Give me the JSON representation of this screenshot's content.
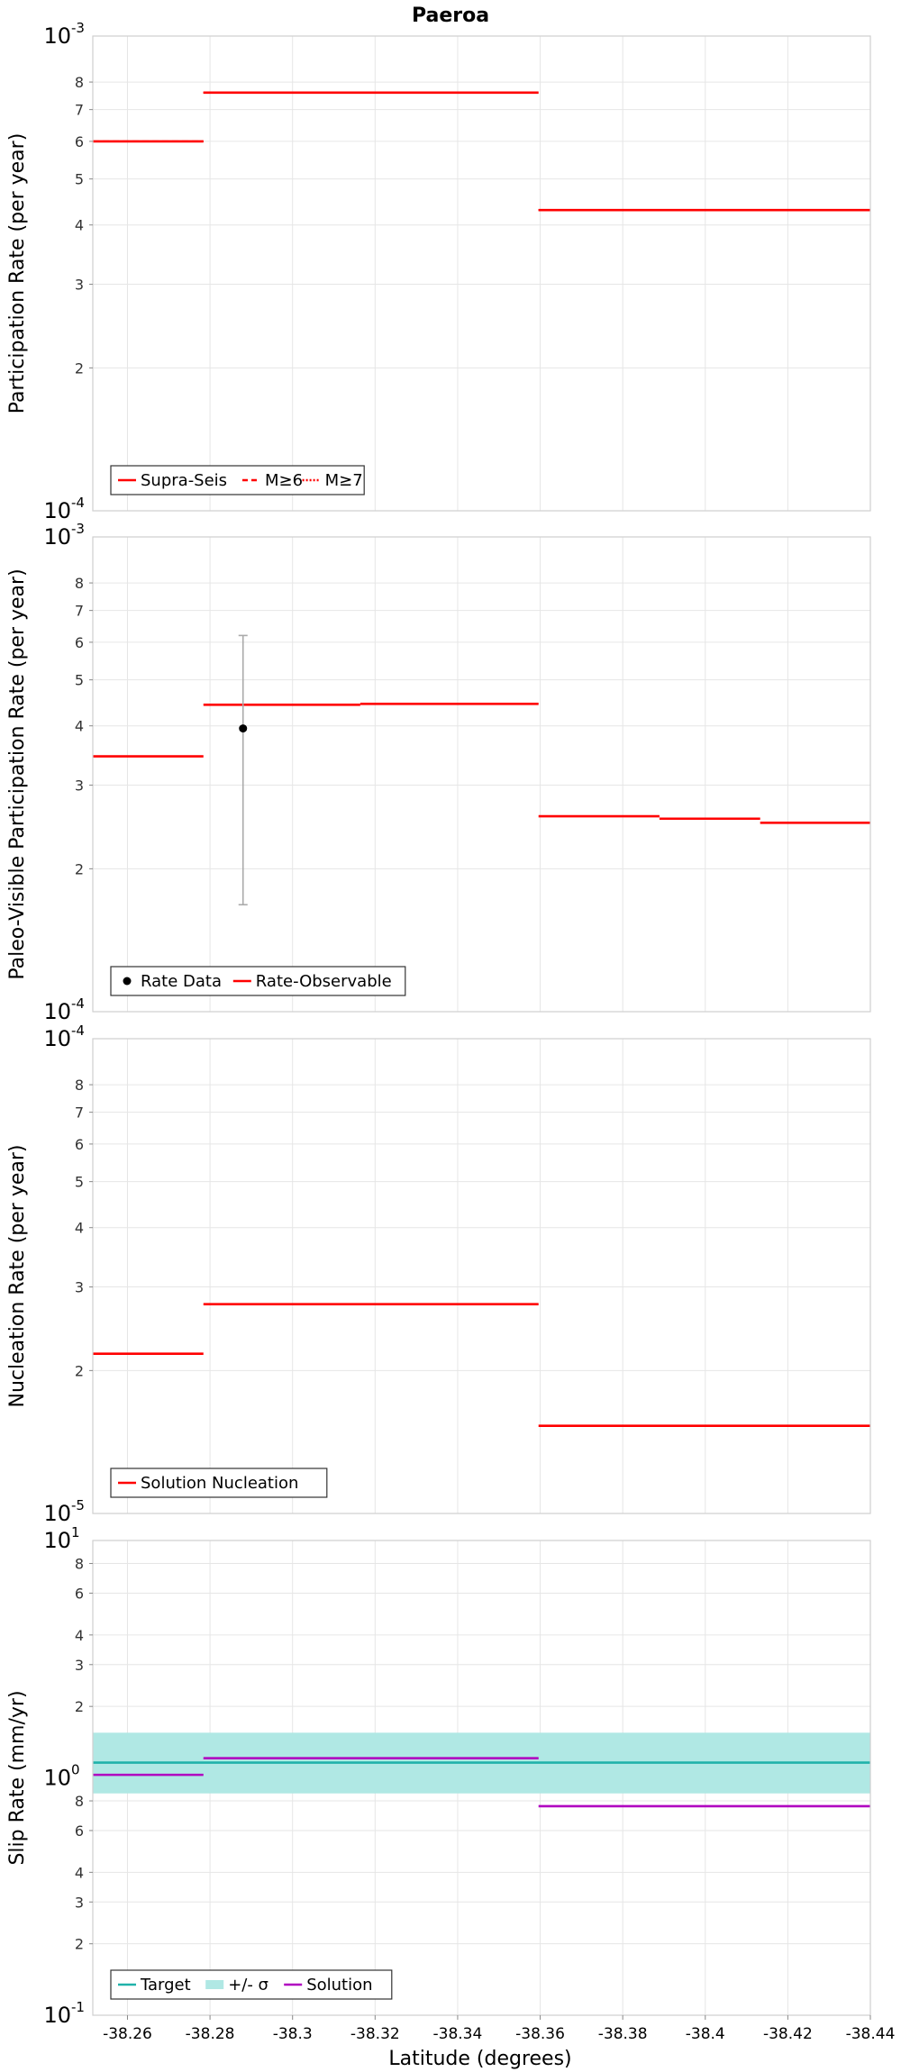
{
  "figure": {
    "title": "Paeroa",
    "xlabel": "Latitude (degrees)",
    "x_ticks": [
      -38.26,
      -38.28,
      -38.3,
      -38.32,
      -38.34,
      -38.36,
      -38.38,
      -38.4,
      -38.42,
      -38.44
    ],
    "x_tick_labels": [
      "-38.26",
      "-38.28",
      "-38.3",
      "-38.32",
      "-38.34",
      "-38.36",
      "-38.38",
      "-38.4",
      "-38.42",
      "-38.44"
    ],
    "xlim": [
      -38.2516,
      -38.44
    ]
  },
  "chart_data": [
    {
      "type": "line",
      "ylabel": "Participation Rate (per year)",
      "yscale": "log",
      "ylim": [
        0.0001,
        0.001
      ],
      "major_ticks": [
        {
          "value": 0.001,
          "base": "10",
          "exp": "-3"
        },
        {
          "value": 0.0001,
          "base": "10",
          "exp": "-4"
        }
      ],
      "minor_tick_labels": [
        "2",
        "3",
        "4",
        "5",
        "6",
        "7",
        "8"
      ],
      "minor_ticks": [
        0.0002,
        0.0003,
        0.0004,
        0.0005,
        0.0006,
        0.0007,
        0.0008
      ],
      "grid": true,
      "legend_position": "bottom-left",
      "legend": [
        {
          "label": "Supra-Seis",
          "style": "solid",
          "color": "#ff0000"
        },
        {
          "label": "M≥6",
          "style": "dashed",
          "color": "#ff0000"
        },
        {
          "label": "M≥7",
          "style": "dotted",
          "color": "#ff0000"
        }
      ],
      "series": [
        {
          "name": "Supra-Seis",
          "style": "solid",
          "color": "#ff0000",
          "segments": [
            {
              "x": [
                -38.2516,
                -38.2784
              ],
              "y": 0.0006
            },
            {
              "x": [
                -38.2784,
                -38.3596
              ],
              "y": 0.00076
            },
            {
              "x": [
                -38.3596,
                -38.44
              ],
              "y": 0.00043
            }
          ]
        },
        {
          "name": "M≥6",
          "style": "dashed",
          "color": "#ff0000",
          "segments": [
            {
              "x": [
                -38.2516,
                -38.2784
              ],
              "y": 0.0006
            },
            {
              "x": [
                -38.2784,
                -38.3596
              ],
              "y": 0.00076
            },
            {
              "x": [
                -38.3596,
                -38.44
              ],
              "y": 0.00043
            }
          ]
        },
        {
          "name": "M≥7",
          "style": "dotted",
          "color": "#ff0000",
          "segments": [
            {
              "x": [
                -38.2784,
                -38.3596
              ],
              "y": 0.00076
            },
            {
              "x": [
                -38.3596,
                -38.44
              ],
              "y": 0.00043
            }
          ]
        }
      ]
    },
    {
      "type": "line",
      "ylabel": "Paleo-Visible Participation Rate (per year)",
      "yscale": "log",
      "ylim": [
        0.0001,
        0.001
      ],
      "major_ticks": [
        {
          "value": 0.001,
          "base": "10",
          "exp": "-3"
        },
        {
          "value": 0.0001,
          "base": "10",
          "exp": "-4"
        }
      ],
      "minor_tick_labels": [
        "2",
        "3",
        "4",
        "5",
        "6",
        "7",
        "8"
      ],
      "minor_ticks": [
        0.0002,
        0.0003,
        0.0004,
        0.0005,
        0.0006,
        0.0007,
        0.0008
      ],
      "grid": true,
      "legend_position": "bottom-left",
      "legend": [
        {
          "label": "Rate Data",
          "style": "point",
          "color": "#000000"
        },
        {
          "label": "Rate-Observable",
          "style": "solid",
          "color": "#ff0000"
        }
      ],
      "points": [
        {
          "name": "Rate Data",
          "x": -38.288,
          "y": 0.000395,
          "y_low": 0.000168,
          "y_high": 0.00062,
          "color": "#000000",
          "error_color": "#aaaaaa"
        }
      ],
      "series": [
        {
          "name": "Rate-Observable",
          "style": "solid",
          "color": "#ff0000",
          "segments": [
            {
              "x": [
                -38.2516,
                -38.2784
              ],
              "y": 0.000345
            },
            {
              "x": [
                -38.2784,
                -38.3164
              ],
              "y": 0.000443
            },
            {
              "x": [
                -38.3164,
                -38.3596
              ],
              "y": 0.000445
            },
            {
              "x": [
                -38.3596,
                -38.3889
              ],
              "y": 0.000258
            },
            {
              "x": [
                -38.3889,
                -38.4133
              ],
              "y": 0.000255
            },
            {
              "x": [
                -38.4133,
                -38.44
              ],
              "y": 0.00025
            }
          ]
        }
      ]
    },
    {
      "type": "line",
      "ylabel": "Nucleation Rate (per year)",
      "yscale": "log",
      "ylim": [
        1e-05,
        0.0001
      ],
      "major_ticks": [
        {
          "value": 0.0001,
          "base": "10",
          "exp": "-4"
        },
        {
          "value": 1e-05,
          "base": "10",
          "exp": "-5"
        }
      ],
      "minor_tick_labels": [
        "2",
        "3",
        "4",
        "5",
        "6",
        "7",
        "8"
      ],
      "minor_ticks": [
        2e-05,
        3e-05,
        4e-05,
        5e-05,
        6e-05,
        7e-05,
        8e-05
      ],
      "grid": true,
      "legend_position": "bottom-left",
      "legend": [
        {
          "label": "Solution Nucleation",
          "style": "solid",
          "color": "#ff0000"
        }
      ],
      "series": [
        {
          "name": "Solution Nucleation",
          "style": "solid",
          "color": "#ff0000",
          "segments": [
            {
              "x": [
                -38.2516,
                -38.2784
              ],
              "y": 2.17e-05
            },
            {
              "x": [
                -38.2784,
                -38.3596
              ],
              "y": 2.76e-05
            },
            {
              "x": [
                -38.3596,
                -38.44
              ],
              "y": 1.53e-05
            }
          ]
        }
      ]
    },
    {
      "type": "line",
      "ylabel": "Slip Rate (mm/yr)",
      "yscale": "log",
      "ylim": [
        0.1,
        10
      ],
      "major_ticks": [
        {
          "value": 10,
          "base": "10",
          "exp": "1"
        },
        {
          "value": 1,
          "base": "10",
          "exp": "0"
        },
        {
          "value": 0.1,
          "base": "10",
          "exp": "-1"
        }
      ],
      "minor_tick_labels": [
        "2",
        "3",
        "4",
        "6",
        "8",
        "2",
        "3",
        "4",
        "6",
        "8"
      ],
      "minor_ticks": [
        0.2,
        0.3,
        0.4,
        0.6,
        0.8,
        2,
        3,
        4,
        6,
        8
      ],
      "grid": true,
      "legend_position": "bottom-left",
      "legend": [
        {
          "label": "Target",
          "style": "solid",
          "color": "#20b2aa"
        },
        {
          "label": "+/- σ",
          "style": "band",
          "color": "#b0e8e4"
        },
        {
          "label": "Solution",
          "style": "solid",
          "color": "#b000c0"
        }
      ],
      "band": {
        "name": "+/- σ",
        "x": [
          -38.2516,
          -38.44
        ],
        "y_low": 0.86,
        "y_high": 1.55,
        "color": "#b0e8e4"
      },
      "series": [
        {
          "name": "Target",
          "style": "solid",
          "color": "#20b2aa",
          "segments": [
            {
              "x": [
                -38.2516,
                -38.44
              ],
              "y": 1.16
            }
          ]
        },
        {
          "name": "Solution",
          "style": "solid",
          "color": "#b000c0",
          "segments": [
            {
              "x": [
                -38.2516,
                -38.2784
              ],
              "y": 1.03
            },
            {
              "x": [
                -38.2784,
                -38.3596
              ],
              "y": 1.21
            },
            {
              "x": [
                -38.3596,
                -38.44
              ],
              "y": 0.76
            }
          ]
        }
      ]
    }
  ]
}
